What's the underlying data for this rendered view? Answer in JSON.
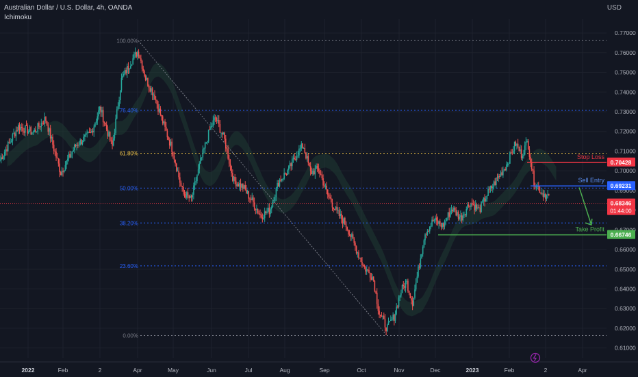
{
  "header": {
    "symbol_title": "Australian Dollar / U.S. Dollar, 4h, OANDA",
    "indicator": "Ichimoku"
  },
  "price_axis": {
    "unit": "USD"
  },
  "colors": {
    "background": "#131722",
    "up": "#26a69a",
    "down": "#ef5350",
    "stop_loss": "#f23645",
    "sell_entry": "#2962ff",
    "take_profit": "#4caf50",
    "current_price": "#f23645",
    "fib_blue": "#2962ff",
    "fib_yellow": "#f7c948",
    "fib_grey": "#787b86"
  },
  "chart_data": {
    "type": "candlestick",
    "ylim": [
      0.605,
      0.777
    ],
    "y_ticks": [
      "0.77000",
      "0.76000",
      "0.75000",
      "0.74000",
      "0.73000",
      "0.72000",
      "0.71000",
      "0.70000",
      "0.69000",
      "0.68000",
      "0.67000",
      "0.66000",
      "0.65000",
      "0.64000",
      "0.63000",
      "0.62000",
      "0.61000"
    ],
    "x_ticks": [
      "2022",
      "Feb",
      "2",
      "Apr",
      "May",
      "Jun",
      "Jul",
      "Aug",
      "Sep",
      "Oct",
      "Nov",
      "Dec",
      "2023",
      "Feb",
      "2",
      "Apr"
    ],
    "fib_levels": [
      {
        "label": "100.00%",
        "price": 0.7661
      },
      {
        "label": "76.40%",
        "price": 0.7307
      },
      {
        "label": "61.80%",
        "price": 0.7089
      },
      {
        "label": "50.00%",
        "price": 0.6912
      },
      {
        "label": "38.20%",
        "price": 0.6735
      },
      {
        "label": "23.60%",
        "price": 0.6517
      },
      {
        "label": "0.00%",
        "price": 0.6163
      }
    ],
    "trade_levels": {
      "stop_loss": {
        "label": "Stop Loss",
        "price": 0.70428,
        "price_label": "0.70428"
      },
      "sell_entry": {
        "label": "Sell Entry",
        "price": 0.69231,
        "price_label": "0.69231"
      },
      "take_profit": {
        "label": "Take Profit",
        "price": 0.66746,
        "price_label": "0.66746"
      }
    },
    "current_price": {
      "price": 0.68346,
      "price_label": "0.68346",
      "countdown": "01:44:00"
    },
    "path": [
      [
        0.0,
        0.7055
      ],
      [
        0.03,
        0.7225
      ],
      [
        0.055,
        0.7195
      ],
      [
        0.075,
        0.7265
      ],
      [
        0.1,
        0.699
      ],
      [
        0.125,
        0.713
      ],
      [
        0.15,
        0.719
      ],
      [
        0.165,
        0.732
      ],
      [
        0.185,
        0.712
      ],
      [
        0.2,
        0.746
      ],
      [
        0.215,
        0.755
      ],
      [
        0.228,
        0.761
      ],
      [
        0.24,
        0.747
      ],
      [
        0.255,
        0.738
      ],
      [
        0.268,
        0.725
      ],
      [
        0.285,
        0.71
      ],
      [
        0.3,
        0.69
      ],
      [
        0.315,
        0.685
      ],
      [
        0.33,
        0.704
      ],
      [
        0.345,
        0.72
      ],
      [
        0.355,
        0.727
      ],
      [
        0.37,
        0.716
      ],
      [
        0.385,
        0.695
      ],
      [
        0.4,
        0.692
      ],
      [
        0.415,
        0.685
      ],
      [
        0.43,
        0.677
      ],
      [
        0.445,
        0.68
      ],
      [
        0.46,
        0.695
      ],
      [
        0.475,
        0.7
      ],
      [
        0.49,
        0.709
      ],
      [
        0.5,
        0.713
      ],
      [
        0.512,
        0.699
      ],
      [
        0.525,
        0.701
      ],
      [
        0.54,
        0.688
      ],
      [
        0.555,
        0.679
      ],
      [
        0.57,
        0.673
      ],
      [
        0.585,
        0.662
      ],
      [
        0.6,
        0.651
      ],
      [
        0.615,
        0.646
      ],
      [
        0.625,
        0.628
      ],
      [
        0.638,
        0.62
      ],
      [
        0.65,
        0.626
      ],
      [
        0.66,
        0.638
      ],
      [
        0.67,
        0.644
      ],
      [
        0.68,
        0.633
      ],
      [
        0.69,
        0.65
      ],
      [
        0.7,
        0.668
      ],
      [
        0.715,
        0.675
      ],
      [
        0.73,
        0.672
      ],
      [
        0.745,
        0.681
      ],
      [
        0.76,
        0.676
      ],
      [
        0.775,
        0.684
      ],
      [
        0.79,
        0.68
      ],
      [
        0.805,
        0.689
      ],
      [
        0.82,
        0.696
      ],
      [
        0.835,
        0.703
      ],
      [
        0.85,
        0.714
      ],
      [
        0.86,
        0.708
      ],
      [
        0.87,
        0.715
      ],
      [
        0.88,
        0.695
      ],
      [
        0.893,
        0.689
      ],
      [
        0.905,
        0.687
      ]
    ],
    "projection": [
      [
        0.955,
        0.6915
      ],
      [
        0.975,
        0.6725
      ]
    ],
    "logo": "tradingview-lightning-icon"
  }
}
